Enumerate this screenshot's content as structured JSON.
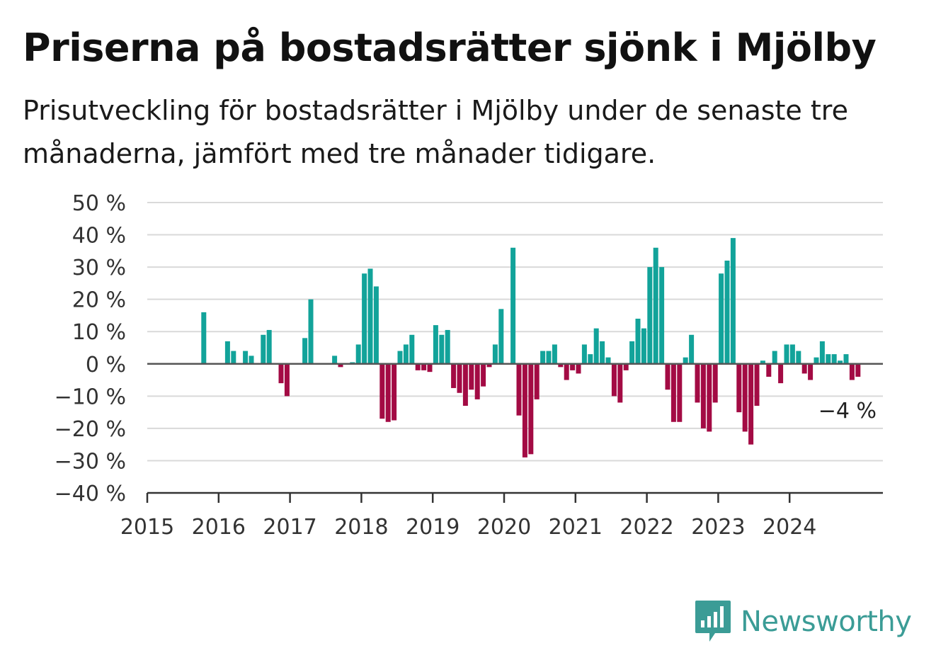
{
  "title": "Priserna på bostadsrätter sjönk i Mjölby",
  "subtitle": "Prisutveckling för bostadsrätter i Mjölby under de senaste tre månaderna, jämfört med tre månader tidigare.",
  "brand": {
    "name": "Newsworthy",
    "icon": "newsworthy-logo-icon",
    "color": "#3b9c96"
  },
  "colors": {
    "positive": "#12a39a",
    "negative": "#a30b44",
    "grid": "#d9d9d9",
    "axis": "#555555"
  },
  "chart_data": {
    "type": "bar",
    "x_start": "2015-01",
    "x_end": "2025-04",
    "xticks": [
      "2015",
      "2016",
      "2017",
      "2018",
      "2019",
      "2020",
      "2021",
      "2022",
      "2023",
      "2024"
    ],
    "yticks": [
      "50 %",
      "40 %",
      "30 %",
      "20 %",
      "10 %",
      "0 %",
      "−10 %",
      "−20 %",
      "−30 %",
      "−40 %"
    ],
    "ylim": [
      -40,
      50
    ],
    "grid": true,
    "last_value_label": "−4 %",
    "months": [
      "2015-01",
      "2015-02",
      "2015-03",
      "2015-04",
      "2015-05",
      "2015-06",
      "2015-07",
      "2015-08",
      "2015-09",
      "2015-10",
      "2015-11",
      "2015-12",
      "2016-01",
      "2016-02",
      "2016-03",
      "2016-04",
      "2016-05",
      "2016-06",
      "2016-07",
      "2016-08",
      "2016-09",
      "2016-10",
      "2016-11",
      "2016-12",
      "2017-01",
      "2017-02",
      "2017-03",
      "2017-04",
      "2017-05",
      "2017-06",
      "2017-07",
      "2017-08",
      "2017-09",
      "2017-10",
      "2017-11",
      "2017-12",
      "2018-01",
      "2018-02",
      "2018-03",
      "2018-04",
      "2018-05",
      "2018-06",
      "2018-07",
      "2018-08",
      "2018-09",
      "2018-10",
      "2018-11",
      "2018-12",
      "2019-01",
      "2019-02",
      "2019-03",
      "2019-04",
      "2019-05",
      "2019-06",
      "2019-07",
      "2019-08",
      "2019-09",
      "2019-10",
      "2019-11",
      "2019-12",
      "2020-01",
      "2020-02",
      "2020-03",
      "2020-04",
      "2020-05",
      "2020-06",
      "2020-07",
      "2020-08",
      "2020-09",
      "2020-10",
      "2020-11",
      "2020-12",
      "2021-01",
      "2021-02",
      "2021-03",
      "2021-04",
      "2021-05",
      "2021-06",
      "2021-07",
      "2021-08",
      "2021-09",
      "2021-10",
      "2021-11",
      "2021-12",
      "2022-01",
      "2022-02",
      "2022-03",
      "2022-04",
      "2022-05",
      "2022-06",
      "2022-07",
      "2022-08",
      "2022-09",
      "2022-10",
      "2022-11",
      "2022-12",
      "2023-01",
      "2023-02",
      "2023-03",
      "2023-04",
      "2023-05",
      "2023-06",
      "2023-07",
      "2023-08",
      "2023-09",
      "2023-10",
      "2023-11",
      "2023-12",
      "2024-01",
      "2024-02",
      "2024-03",
      "2024-04",
      "2024-05",
      "2024-06",
      "2024-07",
      "2024-08",
      "2024-09",
      "2024-10",
      "2024-11",
      "2024-12"
    ],
    "values": [
      null,
      null,
      null,
      null,
      null,
      null,
      null,
      null,
      null,
      16,
      null,
      null,
      null,
      7,
      4,
      null,
      4,
      2.5,
      null,
      9,
      10.5,
      null,
      -6,
      -10,
      null,
      null,
      8,
      20,
      null,
      null,
      null,
      2.5,
      -1,
      null,
      0.5,
      6,
      28,
      29.5,
      24,
      -17,
      -18,
      -17.5,
      4,
      6,
      9,
      -2,
      -2,
      -2.5,
      12,
      9,
      10.5,
      -7.5,
      -9,
      -13,
      -8,
      -11,
      -7,
      -1,
      6,
      17,
      null,
      36,
      -16,
      -29,
      -28,
      -11,
      4,
      4,
      6,
      -1,
      -5,
      -2,
      -3,
      6,
      3,
      11,
      7,
      2,
      -10,
      -12,
      -2,
      7,
      14,
      11,
      30,
      36,
      30,
      -8,
      -18,
      -18,
      2,
      9,
      -12,
      -20,
      -21,
      -12,
      28,
      32,
      39,
      -15,
      -21,
      -25,
      -13,
      1,
      -4,
      4,
      -6,
      6,
      6,
      4,
      -3,
      -5,
      2,
      7,
      3,
      3,
      1,
      3,
      -5,
      -4
    ]
  }
}
